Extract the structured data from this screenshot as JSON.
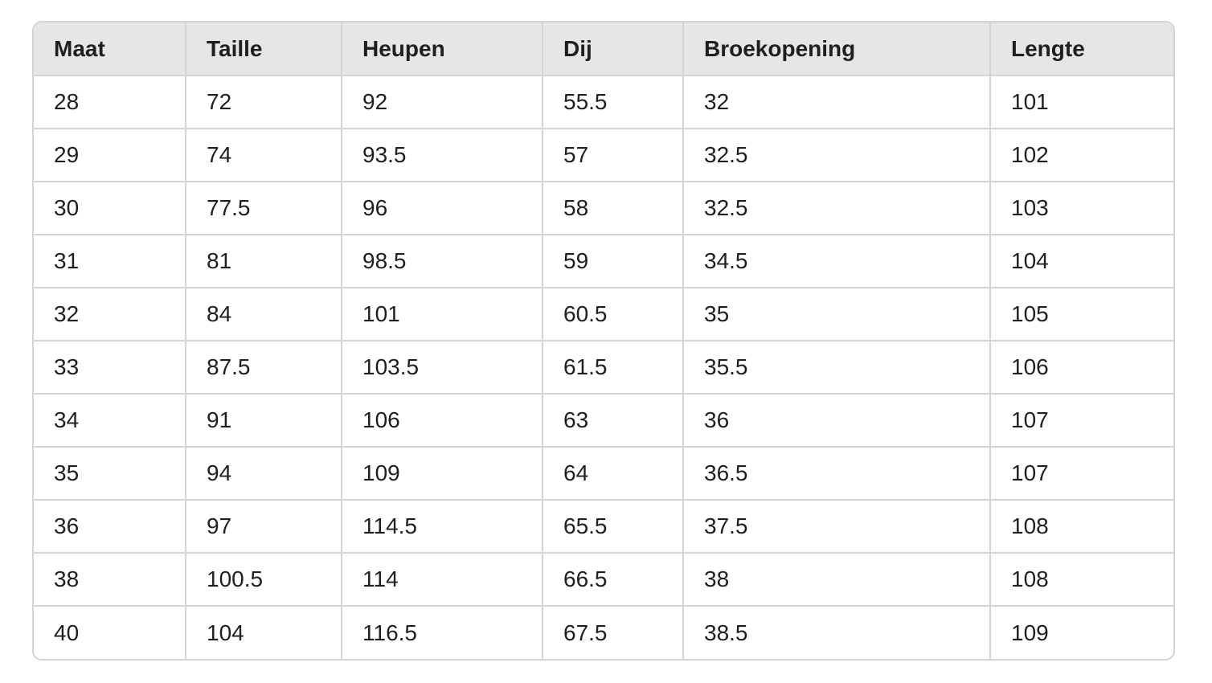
{
  "size_table": {
    "headers": [
      "Maat",
      "Taille",
      "Heupen",
      "Dij",
      "Broekopening",
      "Lengte"
    ],
    "rows": [
      [
        "28",
        "72",
        "92",
        "55.5",
        "32",
        "101"
      ],
      [
        "29",
        "74",
        "93.5",
        "57",
        "32.5",
        "102"
      ],
      [
        "30",
        "77.5",
        "96",
        "58",
        "32.5",
        "103"
      ],
      [
        "31",
        "81",
        "98.5",
        "59",
        "34.5",
        "104"
      ],
      [
        "32",
        "84",
        "101",
        "60.5",
        "35",
        "105"
      ],
      [
        "33",
        "87.5",
        "103.5",
        "61.5",
        "35.5",
        "106"
      ],
      [
        "34",
        "91",
        "106",
        "63",
        "36",
        "107"
      ],
      [
        "35",
        "94",
        "109",
        "64",
        "36.5",
        "107"
      ],
      [
        "36",
        "97",
        "114.5",
        "65.5",
        "37.5",
        "108"
      ],
      [
        "38",
        "100.5",
        "114",
        "66.5",
        "38",
        "108"
      ],
      [
        "40",
        "104",
        "116.5",
        "67.5",
        "38.5",
        "109"
      ]
    ]
  }
}
